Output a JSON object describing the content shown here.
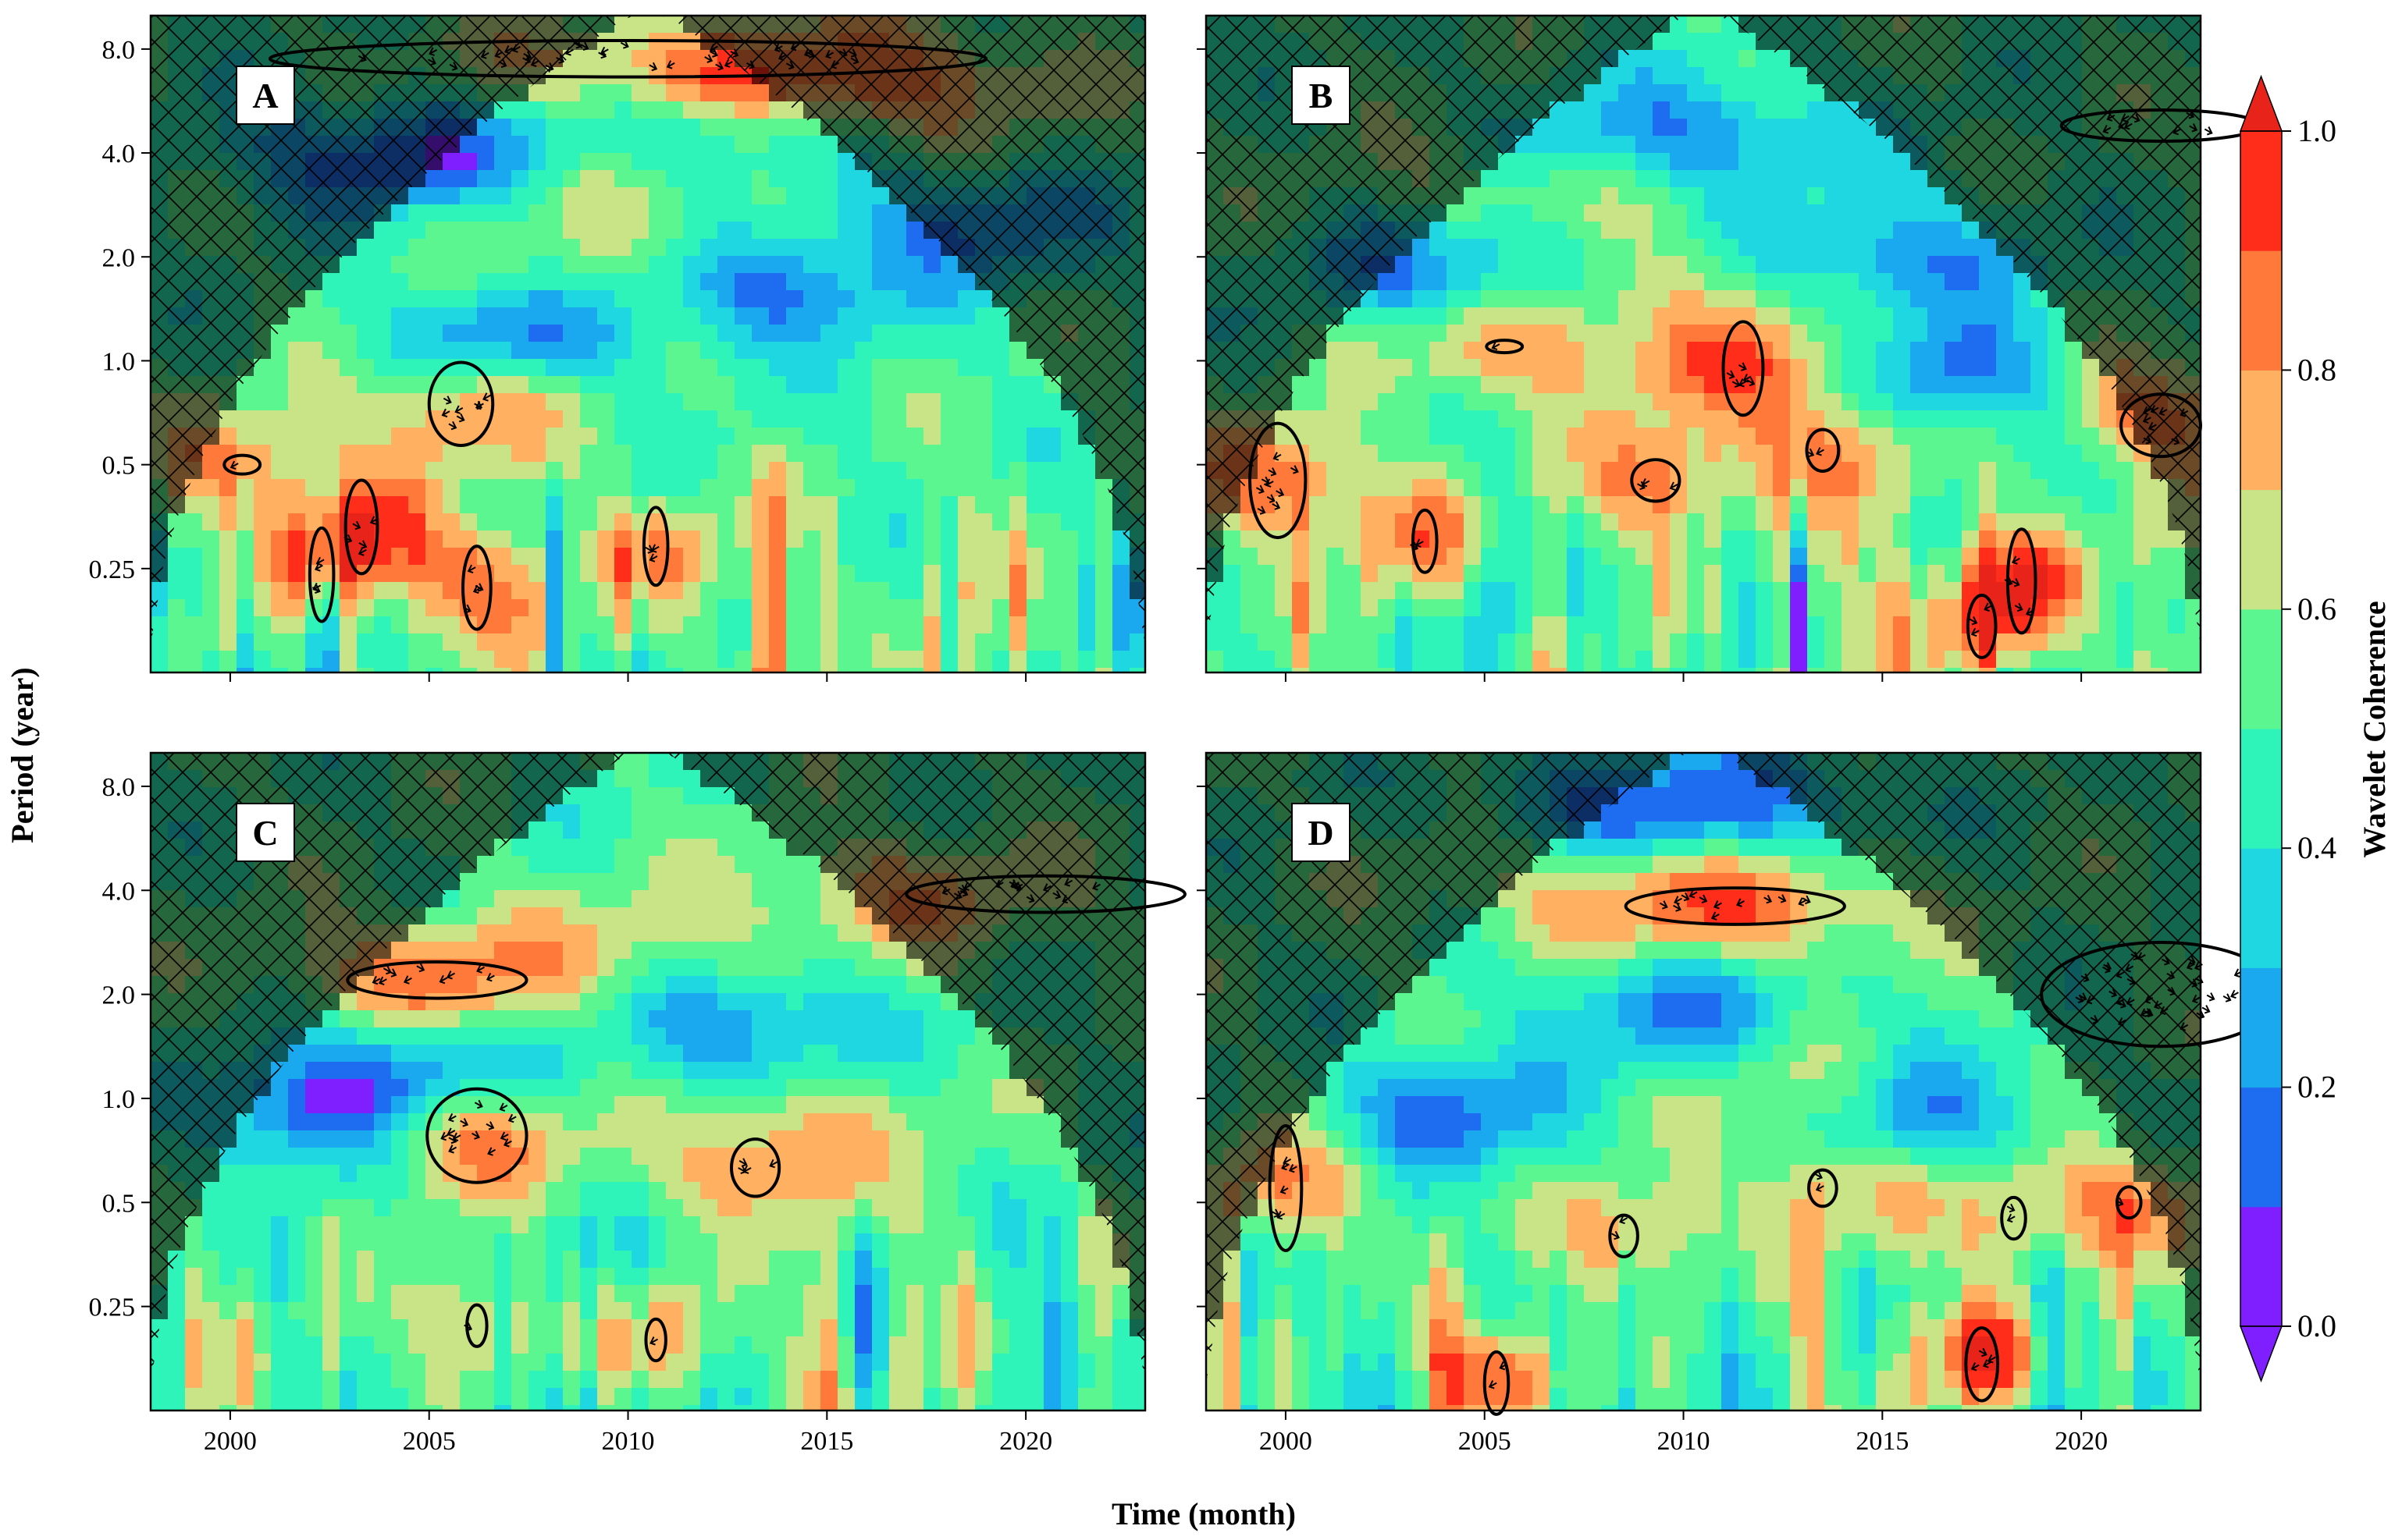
{
  "figure": {
    "ylabel": "Period (year)",
    "xlabel": "Time (month)",
    "colorbar_label": "Wavelet Coherence"
  },
  "chart_data": {
    "type": "heatmap",
    "kind": "wavelet coherence (4 panels)",
    "xlim": [
      1998,
      2023
    ],
    "ylim": [
      0.125,
      10
    ],
    "y_scale": "log2",
    "x_ticks": [
      2000,
      2005,
      2010,
      2015,
      2020
    ],
    "x_tick_labels": [
      "2000",
      "2005",
      "2010",
      "2015",
      "2020"
    ],
    "y_ticks": [
      0.25,
      0.5,
      1.0,
      2.0,
      4.0,
      8.0
    ],
    "y_tick_labels": [
      "0.25",
      "0.5",
      "1.0",
      "2.0",
      "4.0",
      "8.0"
    ],
    "colorbar": {
      "min": 0.0,
      "max": 1.0,
      "ticks": [
        0.0,
        0.2,
        0.4,
        0.6,
        0.8,
        1.0
      ],
      "tick_labels": [
        "0.0",
        "0.2",
        "0.4",
        "0.6",
        "0.8",
        "1.0"
      ],
      "levels": [
        0.0,
        0.1,
        0.2,
        0.3,
        0.4,
        0.5,
        0.6,
        0.7,
        0.8,
        0.9,
        1.0
      ],
      "colors": [
        "#7f1fff",
        "#1e6cf0",
        "#1aa8ee",
        "#1ed7e0",
        "#2ef4b9",
        "#5cf690",
        "#c8e487",
        "#ffb060",
        "#ff7a3a",
        "#ff2d1a"
      ],
      "under_color": "#7f1fff",
      "over_color": "#e8241a",
      "extend": "both"
    },
    "cone_of_influence_hatched": true,
    "panels": [
      {
        "id": "A",
        "background_level": 0.5,
        "features": [
          {
            "year": 2010.5,
            "period": 6.8,
            "level": 0.85
          },
          {
            "year": 2016,
            "period": 6.2,
            "level": 0.9
          },
          {
            "year": 2009,
            "period": 1.8,
            "level": 0.65
          },
          {
            "year": 2011,
            "period": 3.0,
            "level": 0.65
          },
          {
            "year": 2005.8,
            "period": 0.72,
            "level": 0.85
          },
          {
            "year": 2000.3,
            "period": 0.5,
            "level": 0.8
          },
          {
            "year": 2003.3,
            "period": 0.33,
            "level": 0.85
          },
          {
            "year": 2002.3,
            "period": 0.26,
            "level": 0.8
          },
          {
            "year": 2006.2,
            "period": 0.22,
            "level": 0.9
          },
          {
            "year": 2010.7,
            "period": 0.28,
            "level": 0.8
          },
          {
            "year": 2012,
            "period": 5.0,
            "level": 0.2
          },
          {
            "year": 2004,
            "period": 3.9,
            "level": 0.1
          },
          {
            "year": 2013.5,
            "period": 1.6,
            "level": 0.15
          },
          {
            "year": 2018.5,
            "period": 2.5,
            "level": 0.2
          },
          {
            "year": 2007,
            "period": 1.2,
            "level": 0.15
          }
        ],
        "significant_regions": [
          {
            "year": 2010,
            "period": 7.5,
            "span_years": 18,
            "span_octaves": 0.35
          },
          {
            "year": 2005.8,
            "period": 0.75,
            "span_years": 1.6,
            "span_octaves": 0.8
          },
          {
            "year": 2000.3,
            "period": 0.5,
            "span_years": 0.9,
            "span_octaves": 0.18
          },
          {
            "year": 2003.3,
            "period": 0.33,
            "span_years": 0.8,
            "span_octaves": 0.9
          },
          {
            "year": 2002.3,
            "period": 0.24,
            "span_years": 0.6,
            "span_octaves": 0.9
          },
          {
            "year": 2006.2,
            "period": 0.22,
            "span_years": 0.7,
            "span_octaves": 0.8
          },
          {
            "year": 2010.7,
            "period": 0.29,
            "span_years": 0.6,
            "span_octaves": 0.75
          }
        ]
      },
      {
        "id": "B",
        "background_level": 0.5,
        "features": [
          {
            "year": 2009,
            "period": 1.6,
            "level": 0.65
          },
          {
            "year": 2005.5,
            "period": 3.2,
            "level": 0.65
          },
          {
            "year": 2011.5,
            "period": 0.95,
            "level": 0.85
          },
          {
            "year": 1999.8,
            "period": 0.45,
            "level": 0.9
          },
          {
            "year": 2009.3,
            "period": 0.45,
            "level": 0.85
          },
          {
            "year": 2013.5,
            "period": 0.55,
            "level": 0.8
          },
          {
            "year": 2003.5,
            "period": 0.3,
            "level": 0.8
          },
          {
            "year": 2005.5,
            "period": 1.1,
            "level": 0.8
          },
          {
            "year": 2017.5,
            "period": 0.18,
            "level": 0.9
          },
          {
            "year": 2018.5,
            "period": 0.24,
            "level": 0.85
          },
          {
            "year": 2021.8,
            "period": 0.7,
            "level": 0.85
          },
          {
            "year": 2010,
            "period": 4.5,
            "level": 0.2
          },
          {
            "year": 2004,
            "period": 1.8,
            "level": 0.15
          },
          {
            "year": 2015.5,
            "period": 2.0,
            "level": 0.2
          },
          {
            "year": 2017,
            "period": 0.9,
            "level": 0.15
          }
        ],
        "significant_regions": [
          {
            "year": 2011.5,
            "period": 0.95,
            "span_years": 1.0,
            "span_octaves": 0.9
          },
          {
            "year": 1999.8,
            "period": 0.45,
            "span_years": 1.4,
            "span_octaves": 1.1
          },
          {
            "year": 2009.3,
            "period": 0.45,
            "span_years": 1.2,
            "span_octaves": 0.4
          },
          {
            "year": 2013.5,
            "period": 0.55,
            "span_years": 0.8,
            "span_octaves": 0.4
          },
          {
            "year": 2003.5,
            "period": 0.3,
            "span_years": 0.6,
            "span_octaves": 0.6
          },
          {
            "year": 2005.5,
            "period": 1.1,
            "span_years": 0.9,
            "span_octaves": 0.12
          },
          {
            "year": 2017.5,
            "period": 0.17,
            "span_years": 0.7,
            "span_octaves": 0.6
          },
          {
            "year": 2018.5,
            "period": 0.23,
            "span_years": 0.7,
            "span_octaves": 1.0
          },
          {
            "year": 2022,
            "period": 0.65,
            "span_years": 2.0,
            "span_octaves": 0.6
          },
          {
            "year": 2022,
            "period": 4.8,
            "span_years": 5.0,
            "span_octaves": 0.3
          }
        ]
      },
      {
        "id": "C",
        "background_level": 0.5,
        "features": [
          {
            "year": 2005,
            "period": 2.2,
            "level": 0.85
          },
          {
            "year": 2010,
            "period": 2.8,
            "level": 0.65
          },
          {
            "year": 2017,
            "period": 3.9,
            "level": 0.75
          },
          {
            "year": 2006,
            "period": 0.78,
            "level": 0.9
          },
          {
            "year": 2013.2,
            "period": 0.63,
            "level": 0.8
          },
          {
            "year": 2015.5,
            "period": 0.85,
            "level": 0.65
          },
          {
            "year": 2004.5,
            "period": 1.2,
            "level": 0.15
          },
          {
            "year": 2002,
            "period": 0.9,
            "level": 0.15
          },
          {
            "year": 2013,
            "period": 1.6,
            "level": 0.2
          },
          {
            "year": 2010.7,
            "period": 0.2,
            "level": 0.8
          },
          {
            "year": 2006.2,
            "period": 0.22,
            "level": 0.8
          }
        ],
        "significant_regions": [
          {
            "year": 2005.2,
            "period": 2.2,
            "span_years": 4.5,
            "span_octaves": 0.35
          },
          {
            "year": 2006.2,
            "period": 0.78,
            "span_years": 2.5,
            "span_octaves": 0.9
          },
          {
            "year": 2013.2,
            "period": 0.63,
            "span_years": 1.2,
            "span_octaves": 0.55
          },
          {
            "year": 2010.7,
            "period": 0.2,
            "span_years": 0.5,
            "span_octaves": 0.4
          },
          {
            "year": 2006.2,
            "period": 0.22,
            "span_years": 0.5,
            "span_octaves": 0.4
          },
          {
            "year": 2020.5,
            "period": 3.9,
            "span_years": 7.0,
            "span_octaves": 0.35
          }
        ]
      },
      {
        "id": "D",
        "background_level": 0.5,
        "features": [
          {
            "year": 2011.5,
            "period": 3.6,
            "level": 0.85
          },
          {
            "year": 2007,
            "period": 4.0,
            "level": 0.65
          },
          {
            "year": 2013,
            "period": 1.1,
            "level": 0.65
          },
          {
            "year": 2000,
            "period": 0.55,
            "level": 0.8
          },
          {
            "year": 2008.5,
            "period": 0.4,
            "level": 0.8
          },
          {
            "year": 2013.5,
            "period": 0.55,
            "level": 0.75
          },
          {
            "year": 2018.3,
            "period": 0.45,
            "level": 0.75
          },
          {
            "year": 2021.2,
            "period": 0.5,
            "level": 0.8
          },
          {
            "year": 2005.3,
            "period": 0.16,
            "level": 0.95
          },
          {
            "year": 2017.5,
            "period": 0.18,
            "level": 0.95
          },
          {
            "year": 2010,
            "period": 7.0,
            "level": 0.1
          },
          {
            "year": 2004,
            "period": 0.9,
            "level": 0.15
          },
          {
            "year": 2010,
            "period": 1.8,
            "level": 0.2
          },
          {
            "year": 2016,
            "period": 0.9,
            "level": 0.2
          }
        ],
        "significant_regions": [
          {
            "year": 2011.3,
            "period": 3.6,
            "span_years": 5.5,
            "span_octaves": 0.35
          },
          {
            "year": 2000,
            "period": 0.55,
            "span_years": 0.8,
            "span_octaves": 1.2
          },
          {
            "year": 2008.5,
            "period": 0.4,
            "span_years": 0.7,
            "span_octaves": 0.4
          },
          {
            "year": 2013.5,
            "period": 0.55,
            "span_years": 0.7,
            "span_octaves": 0.35
          },
          {
            "year": 2018.3,
            "period": 0.45,
            "span_years": 0.6,
            "span_octaves": 0.4
          },
          {
            "year": 2021.2,
            "period": 0.5,
            "span_years": 0.6,
            "span_octaves": 0.3
          },
          {
            "year": 2005.3,
            "period": 0.15,
            "span_years": 0.6,
            "span_octaves": 0.6
          },
          {
            "year": 2017.5,
            "period": 0.17,
            "span_years": 0.8,
            "span_octaves": 0.7
          },
          {
            "year": 2022,
            "period": 2.0,
            "span_years": 6.0,
            "span_octaves": 1.0
          }
        ]
      }
    ]
  }
}
